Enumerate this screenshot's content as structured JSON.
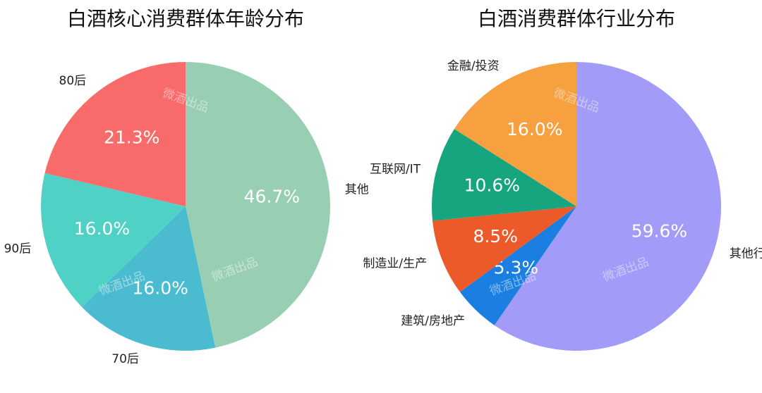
{
  "chart_data": [
    {
      "type": "pie",
      "title": "白酒核心消费群体年龄分布",
      "categories": [
        "其他",
        "70后",
        "90后",
        "80后"
      ],
      "values": [
        46.7,
        16.0,
        16.0,
        21.3
      ],
      "value_labels": [
        "46.7%",
        "16.0%",
        "16.0%",
        "21.3%"
      ],
      "colors": [
        "#98cfb3",
        "#4bbbd0",
        "#4fd1c5",
        "#f96b6b"
      ],
      "watermark": "微酒出品"
    },
    {
      "type": "pie",
      "title": "白酒消费群体行业分布",
      "categories": [
        "其他行业",
        "建筑/房地产",
        "制造业/生产",
        "互联网/IT",
        "金融/投资"
      ],
      "values": [
        59.6,
        5.3,
        8.5,
        10.6,
        16.0
      ],
      "value_labels": [
        "59.6%",
        "5.3%",
        "8.5%",
        "10.6%",
        "16.0%"
      ],
      "colors": [
        "#a29bf7",
        "#1a7fe0",
        "#ed5a2a",
        "#16a57e",
        "#f7a040"
      ],
      "watermark": "微酒出品"
    }
  ]
}
